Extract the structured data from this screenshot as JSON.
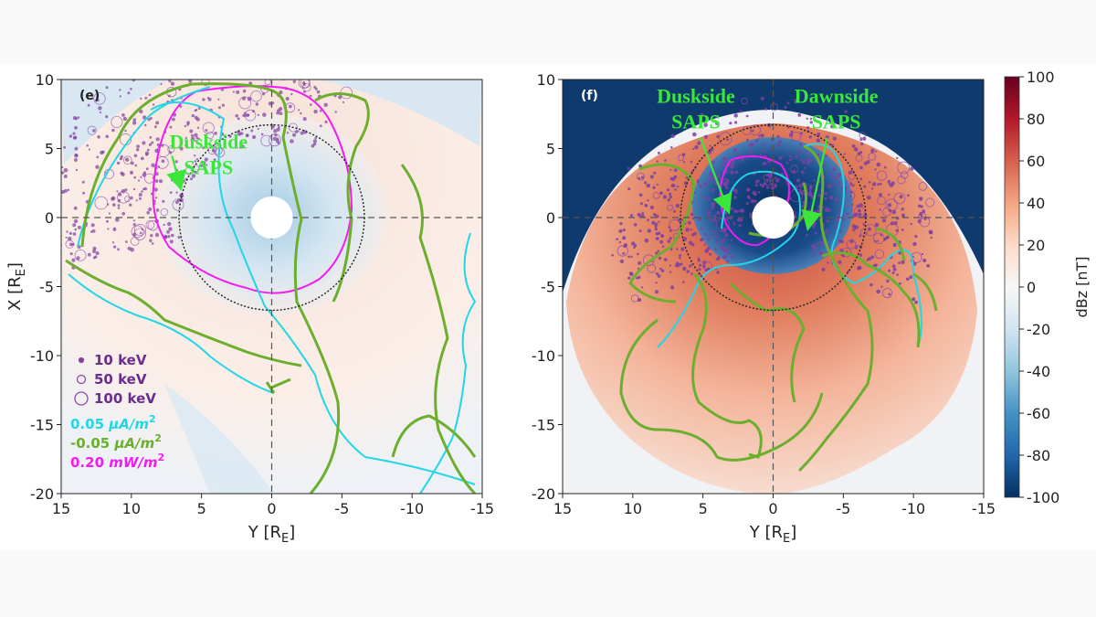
{
  "chart_data": [
    {
      "type": "heatmap",
      "panel_label": "(e)",
      "xlabel_main": "Y [R",
      "xlabel_sub": "E",
      "xlabel_end": "]",
      "ylabel_main": "X [R",
      "ylabel_sub": "E",
      "ylabel_end": "]",
      "xlim": [
        15,
        -15
      ],
      "ylim": [
        -20,
        10
      ],
      "x_ticks": [
        15,
        10,
        5,
        0,
        -5,
        -10,
        -15
      ],
      "y_ticks": [
        10,
        5,
        0,
        -5,
        -10,
        -15,
        -20
      ],
      "annotations": [
        {
          "line1": "Duskside",
          "line2": "SAPS",
          "text_x": 4.5,
          "text_y": 5,
          "arrow_to": [
            6.5,
            2.2
          ]
        }
      ],
      "legend": {
        "markers": [
          {
            "label": "10 keV",
            "size": "small"
          },
          {
            "label": "50 keV",
            "size": "medium"
          },
          {
            "label": "100 keV",
            "size": "large"
          }
        ],
        "contours": [
          {
            "value": "0.05",
            "unit": "μA/m",
            "sup": "2",
            "color": "#22d6e6"
          },
          {
            "value": "-0.05",
            "unit": "μA/m",
            "sup": "2",
            "color": "#6cae2e"
          },
          {
            "value": "0.20",
            "unit": "mW/m",
            "sup": "2",
            "color": "#f21bf2"
          }
        ]
      },
      "reference_circle_radius": 6.6,
      "earth_radius": 1.5
    },
    {
      "type": "heatmap",
      "panel_label": "(f)",
      "xlabel_main": "Y [R",
      "xlabel_sub": "E",
      "xlabel_end": "]",
      "xlim": [
        15,
        -15
      ],
      "ylim": [
        -20,
        10
      ],
      "x_ticks": [
        15,
        10,
        5,
        0,
        -5,
        -10,
        -15
      ],
      "y_ticks": [
        10,
        5,
        0,
        -5,
        -10,
        -15,
        -20
      ],
      "annotations": [
        {
          "line1": "Duskside",
          "line2": "SAPS",
          "text_x": 5.5,
          "text_y": 8.3,
          "arrow_to": [
            3.2,
            0.5
          ]
        },
        {
          "line1": "Dawnside",
          "line2": "SAPS",
          "text_x": -4.5,
          "text_y": 8.3,
          "arrow_to": [
            -2.5,
            -0.7
          ]
        }
      ],
      "reference_circle_radius": 6.6,
      "earth_radius": 1.5
    }
  ],
  "colorbar": {
    "label": "dBz [nT]",
    "min": -100,
    "max": 100,
    "ticks": [
      100,
      80,
      60,
      40,
      20,
      0,
      -20,
      -40,
      -60,
      -80,
      -100
    ],
    "colors": [
      "#67001f",
      "#b2182b",
      "#d6604d",
      "#f4a582",
      "#fddbc7",
      "#f7f7f7",
      "#d1e5f0",
      "#92c5de",
      "#4393c3",
      "#2166ac",
      "#053061"
    ]
  }
}
